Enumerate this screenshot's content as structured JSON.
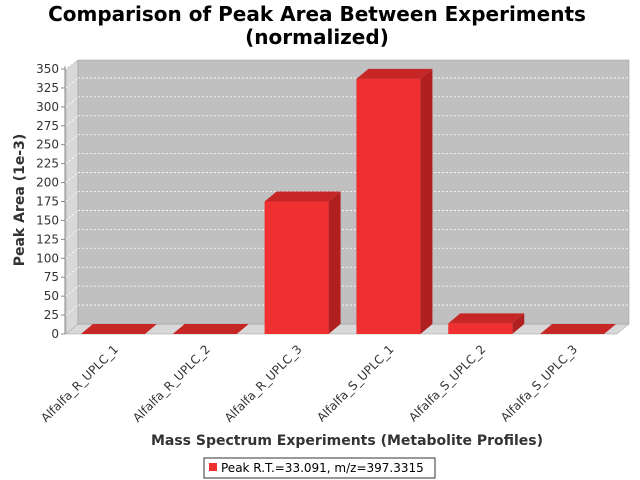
{
  "chart_data": {
    "type": "bar",
    "title": "Comparison of Peak Area Between Experiments",
    "subtitle": "(normalized)",
    "xlabel": "Mass Spectrum Experiments (Metabolite Profiles)",
    "ylabel": "Peak Area (1e-3)",
    "categories": [
      "Alfalfa_R_UPLC_1",
      "Alfalfa_R_UPLC_2",
      "Alfalfa_R_UPLC_3",
      "Alfalfa_S_UPLC_1",
      "Alfalfa_S_UPLC_2",
      "Alfalfa_S_UPLC_3"
    ],
    "series": [
      {
        "name": "Peak R.T.=33.091, m/z=397.3315",
        "values": [
          0,
          0,
          175,
          337,
          14,
          0
        ]
      }
    ],
    "ylim": [
      0,
      350
    ],
    "yticks": [
      "0",
      "25",
      "50",
      "75",
      "100",
      "125",
      "150",
      "175",
      "200",
      "225",
      "250",
      "275",
      "300",
      "325",
      "350"
    ],
    "grid": true,
    "legend": "bottom",
    "colors": {
      "bar_front": "#f03030",
      "bar_top": "#c62626",
      "bar_side": "#b02020",
      "plot_bg": "#c0c0c0",
      "plot_wall": "#d8d8d8",
      "gridline": "#ffffff"
    }
  }
}
